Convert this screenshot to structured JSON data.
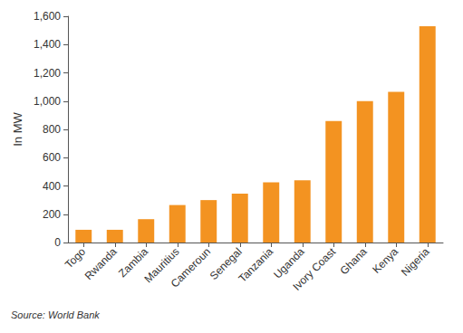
{
  "chart_data": {
    "type": "bar",
    "ylabel": "In MW",
    "annotations": [
      "Source: World Bank"
    ],
    "categories": [
      "Togo",
      "Rwanda",
      "Zambia",
      "Mauritius",
      "Cameroun",
      "Senegal",
      "Tanzania",
      "Uganda",
      "Ivory Coast",
      "Ghana",
      "Kenya",
      "Nigeria"
    ],
    "values": [
      90,
      90,
      165,
      265,
      300,
      345,
      425,
      440,
      860,
      1000,
      1065,
      1530
    ],
    "color": "#f39321",
    "ylim": [
      0,
      1600
    ],
    "yticks": [
      0,
      200,
      400,
      600,
      800,
      {
        "value": 1000,
        "label": "1,000"
      },
      {
        "value": 1200,
        "label": "1,200"
      },
      {
        "value": 1400,
        "label": "1,400"
      },
      {
        "value": 1600,
        "label": "1,600"
      }
    ],
    "grid": false
  }
}
